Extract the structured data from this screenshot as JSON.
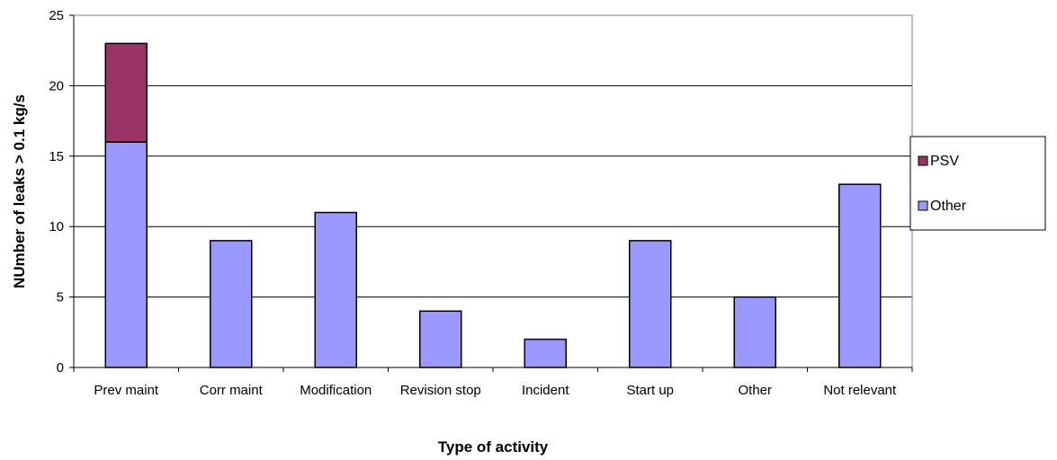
{
  "chart_data": {
    "type": "bar",
    "stacked": true,
    "categories": [
      "Prev maint",
      "Corr maint",
      "Modification",
      "Revision stop",
      "Incident",
      "Start up",
      "Other",
      "Not relevant"
    ],
    "series": [
      {
        "name": "Other",
        "color": "#9999ff",
        "values": [
          16,
          9,
          11,
          4,
          2,
          9,
          5,
          13
        ]
      },
      {
        "name": "PSV",
        "color": "#993366",
        "values": [
          7,
          0,
          0,
          0,
          0,
          0,
          0,
          0
        ]
      }
    ],
    "xlabel": "Type of activity",
    "ylabel": "NUmber of leaks > 0.1 kg/s",
    "ylim": [
      0,
      25
    ],
    "yticks": [
      0,
      5,
      10,
      15,
      20,
      25
    ],
    "grid": true,
    "legend_position": "right",
    "legend_order": [
      "PSV",
      "Other"
    ]
  }
}
